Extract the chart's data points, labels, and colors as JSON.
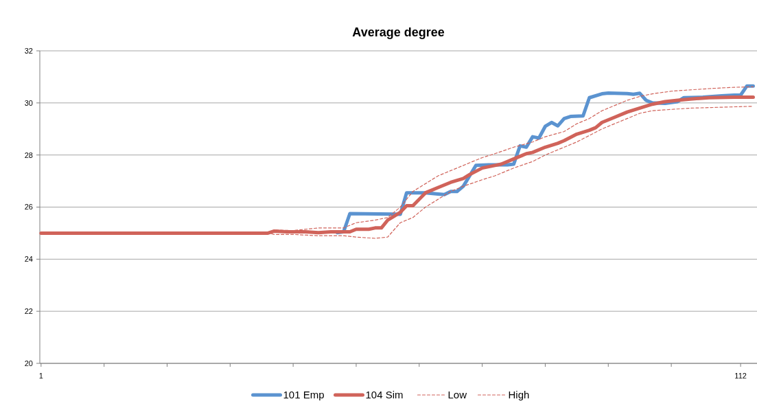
{
  "chart_data": {
    "type": "line",
    "title": "Average degree",
    "xlim": [
      0.8,
      114.6
    ],
    "xticks": [
      {
        "value": 1,
        "label": "1"
      },
      {
        "value": 11,
        "label": null
      },
      {
        "value": 21,
        "label": null
      },
      {
        "value": 31,
        "label": null
      },
      {
        "value": 41,
        "label": null
      },
      {
        "value": 51,
        "label": null
      },
      {
        "value": 61,
        "label": null
      },
      {
        "value": 71,
        "label": null
      },
      {
        "value": 81,
        "label": null
      },
      {
        "value": 91,
        "label": null
      },
      {
        "value": 101,
        "label": null
      },
      {
        "value": 112,
        "label": "112"
      }
    ],
    "ylim": [
      20,
      32
    ],
    "yticks": [
      20,
      22,
      24,
      26,
      28,
      30,
      32
    ],
    "grid": "y",
    "legend": "bottom",
    "marker": "none",
    "series": [
      {
        "name": "101 Emp",
        "color": "#5b93d0",
        "line_style": "solid",
        "x": [
          48,
          49,
          50,
          57,
          58,
          59,
          62,
          64,
          65,
          66,
          67,
          68,
          70,
          72,
          75,
          76,
          77,
          78,
          79,
          80,
          81,
          82,
          83,
          84,
          85,
          87,
          88,
          90,
          91,
          94,
          95,
          96,
          97,
          98,
          100,
          102,
          103,
          106,
          109,
          111,
          112,
          113,
          114
        ],
        "values": [
          25.02,
          25.05,
          25.75,
          25.73,
          25.72,
          26.55,
          26.55,
          26.5,
          26.48,
          26.6,
          26.6,
          26.8,
          27.6,
          27.62,
          27.62,
          27.65,
          28.35,
          28.3,
          28.7,
          28.65,
          29.1,
          29.25,
          29.12,
          29.4,
          29.48,
          29.5,
          30.2,
          30.35,
          30.38,
          30.36,
          30.33,
          30.37,
          30.1,
          30,
          29.98,
          30.05,
          30.2,
          30.22,
          30.27,
          30.3,
          30.3,
          30.65,
          30.65
        ]
      },
      {
        "name": "104 Sim",
        "color": "#d0635a",
        "line_style": "solid",
        "x": [
          1,
          37,
          38,
          40,
          43,
          45,
          47,
          49,
          50,
          51,
          53,
          54,
          55,
          56,
          57,
          58,
          59,
          60,
          61,
          62,
          64,
          66,
          68,
          69,
          71,
          73,
          74,
          76,
          78,
          79,
          81,
          83,
          84,
          86,
          88,
          89,
          90,
          92,
          94,
          96,
          98,
          100,
          102,
          104,
          107,
          111,
          114
        ],
        "values": [
          25,
          25,
          25.08,
          25.05,
          25.05,
          25.02,
          25.05,
          25.05,
          25.05,
          25.15,
          25.15,
          25.2,
          25.2,
          25.5,
          25.65,
          25.8,
          26.05,
          26.05,
          26.3,
          26.55,
          26.75,
          26.95,
          27.1,
          27.25,
          27.5,
          27.6,
          27.65,
          27.85,
          28.05,
          28.1,
          28.3,
          28.45,
          28.55,
          28.8,
          28.95,
          29.05,
          29.25,
          29.45,
          29.65,
          29.8,
          29.95,
          30.05,
          30.1,
          30.15,
          30.2,
          30.22,
          30.22
        ]
      },
      {
        "name": "Low",
        "color": "#d0635a",
        "line_style": "dashed",
        "x": [
          1,
          37,
          38,
          41,
          45,
          49,
          51,
          54,
          56,
          58,
          60,
          62,
          64,
          66,
          68,
          71,
          73,
          76,
          79,
          81,
          84,
          86,
          88,
          90,
          92,
          94,
          96,
          98,
          101,
          104,
          107,
          111,
          114
        ],
        "values": [
          25,
          25,
          24.95,
          24.95,
          24.9,
          24.9,
          24.85,
          24.8,
          24.85,
          25.4,
          25.6,
          26,
          26.3,
          26.6,
          26.8,
          27.05,
          27.2,
          27.5,
          27.75,
          28,
          28.3,
          28.5,
          28.75,
          29,
          29.2,
          29.4,
          29.6,
          29.7,
          29.75,
          29.8,
          29.82,
          29.85,
          29.87
        ]
      },
      {
        "name": "High",
        "color": "#d0635a",
        "line_style": "dashed",
        "x": [
          1,
          37,
          38,
          41,
          45,
          49,
          51,
          54,
          56,
          58,
          60,
          62,
          64,
          66,
          68,
          71,
          73,
          76,
          79,
          81,
          84,
          86,
          88,
          90,
          92,
          94,
          96,
          98,
          101,
          104,
          107,
          111,
          114
        ],
        "values": [
          25,
          25,
          25.12,
          25.1,
          25.2,
          25.2,
          25.4,
          25.5,
          25.6,
          26,
          26.6,
          26.9,
          27.2,
          27.4,
          27.6,
          27.9,
          28.05,
          28.3,
          28.5,
          28.7,
          28.9,
          29.2,
          29.4,
          29.7,
          29.9,
          30.1,
          30.25,
          30.35,
          30.45,
          30.5,
          30.55,
          30.6,
          30.62
        ]
      }
    ]
  }
}
